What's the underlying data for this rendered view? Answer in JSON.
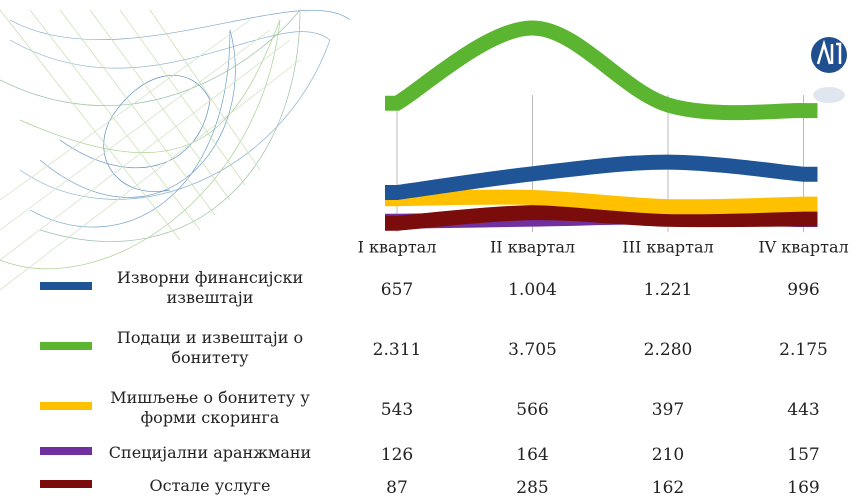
{
  "chart_data": {
    "type": "line",
    "categories": [
      "I квартал",
      "II квартал",
      "III квартал",
      "IV квартал"
    ],
    "series": [
      {
        "name": "Изворни финансијски извештаји",
        "color": "#1f5597",
        "values": [
          657,
          1004,
          1221,
          996
        ],
        "value_labels": [
          "657",
          "1.004",
          "1.221",
          "996"
        ]
      },
      {
        "name": "Подаци и извештаји о бонитету",
        "color": "#5cb531",
        "values": [
          2311,
          3705,
          2280,
          2175
        ],
        "value_labels": [
          "2.311",
          "3.705",
          "2.280",
          "2.175"
        ]
      },
      {
        "name": "Мишљење о бонитету у форми скоринга",
        "color": "#ffc000",
        "values": [
          543,
          566,
          397,
          443
        ],
        "value_labels": [
          "543",
          "566",
          "397",
          "443"
        ]
      },
      {
        "name": "Специјални аранжмани",
        "color": "#7030a0",
        "values": [
          126,
          164,
          210,
          157
        ],
        "value_labels": [
          "126",
          "164",
          "210",
          "157"
        ]
      },
      {
        "name": "Остале услуге",
        "color": "#7b0c0c",
        "values": [
          87,
          285,
          162,
          169
        ],
        "value_labels": [
          "87",
          "285",
          "162",
          "169"
        ]
      }
    ]
  }
}
